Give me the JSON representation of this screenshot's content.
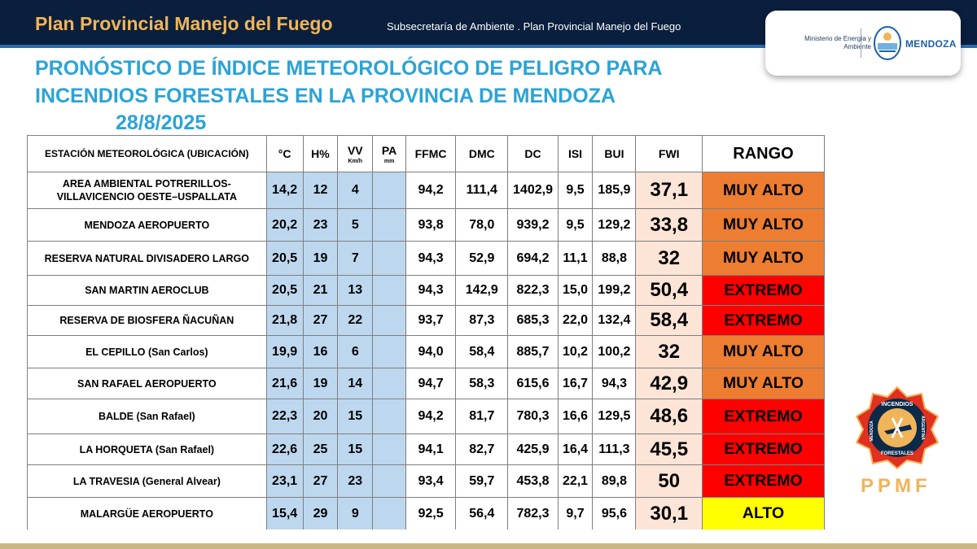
{
  "header": {
    "title": "Plan Provincial Manejo del Fuego",
    "subtitle": "Subsecretaría de Ambiente . Plan Provincial Manejo del Fuego",
    "logo_ministry": "Ministerio de Energía y Ambiente",
    "logo_mendoza": "MENDOZA"
  },
  "heading": {
    "line1": "PRONÓSTICO DE ÍNDICE METEOROLÓGICO DE PELIGRO PARA",
    "line2": "INCENDIOS FORESTALES EN LA PROVINCIA DE MENDOZA",
    "date": "28/8/2025"
  },
  "table": {
    "headers": {
      "station": "ESTACIÓN METEOROLÓGICA (UBICACIÓN)",
      "temp": "°C",
      "hum": "H%",
      "wind": "VV",
      "wind_unit": "Km/h",
      "rain": "PA",
      "rain_unit": "mm",
      "ffmc": "FFMC",
      "dmc": "DMC",
      "dc": "DC",
      "isi": "ISI",
      "bui": "BUI",
      "fwi": "FWI",
      "range": "RANGO"
    },
    "rows": [
      {
        "station_l1": "AREA AMBIENTAL POTRERILLOS-",
        "station_l2": "VILLAVICENCIO OESTE–USPALLATA",
        "temp": "14,2",
        "hum": "12",
        "wind": "4",
        "rain": "",
        "ffmc": "94,2",
        "dmc": "111,4",
        "dc": "1402,9",
        "isi": "9,5",
        "bui": "185,9",
        "fwi": "37,1",
        "range": "MUY ALTO",
        "range_color": "#ed7d31"
      },
      {
        "station_l1": "MENDOZA AEROPUERTO",
        "station_l2": "",
        "temp": "20,2",
        "hum": "23",
        "wind": "5",
        "rain": "",
        "ffmc": "93,8",
        "dmc": "78,0",
        "dc": "939,2",
        "isi": "9,5",
        "bui": "129,2",
        "fwi": "33,8",
        "range": "MUY ALTO",
        "range_color": "#ed7d31"
      },
      {
        "station_l1": "RESERVA NATURAL DIVISADERO LARGO",
        "station_l2": "",
        "temp": "20,5",
        "hum": "19",
        "wind": "7",
        "rain": "",
        "ffmc": "94,3",
        "dmc": "52,9",
        "dc": "694,2",
        "isi": "11,1",
        "bui": "88,8",
        "fwi": "32",
        "range": "MUY ALTO",
        "range_color": "#ed7d31"
      },
      {
        "station_l1": "SAN MARTIN AEROCLUB",
        "station_l2": "",
        "temp": "20,5",
        "hum": "21",
        "wind": "13",
        "rain": "",
        "ffmc": "94,3",
        "dmc": "142,9",
        "dc": "822,3",
        "isi": "15,0",
        "bui": "199,2",
        "fwi": "50,4",
        "range": "EXTREMO",
        "range_color": "#ff0000"
      },
      {
        "station_l1": "RESERVA DE BIOSFERA ÑACUÑAN",
        "station_l2": "",
        "temp": "21,8",
        "hum": "27",
        "wind": "22",
        "rain": "",
        "ffmc": "93,7",
        "dmc": "87,3",
        "dc": "685,3",
        "isi": "22,0",
        "bui": "132,4",
        "fwi": "58,4",
        "range": "EXTREMO",
        "range_color": "#ff0000"
      },
      {
        "station_l1": "EL CEPILLO (San Carlos)",
        "station_l2": "",
        "temp": "19,9",
        "hum": "16",
        "wind": "6",
        "rain": "",
        "ffmc": "94,0",
        "dmc": "58,4",
        "dc": "885,7",
        "isi": "10,2",
        "bui": "100,2",
        "fwi": "32",
        "range": "MUY ALTO",
        "range_color": "#ed7d31"
      },
      {
        "station_l1": "SAN RAFAEL AEROPUERTO",
        "station_l2": "",
        "temp": "21,6",
        "hum": "19",
        "wind": "14",
        "rain": "",
        "ffmc": "94,7",
        "dmc": "58,3",
        "dc": "615,6",
        "isi": "16,7",
        "bui": "94,3",
        "fwi": "42,9",
        "range": "MUY ALTO",
        "range_color": "#ed7d31"
      },
      {
        "station_l1": "BALDE (San Rafael)",
        "station_l2": "",
        "temp": "22,3",
        "hum": "20",
        "wind": "15",
        "rain": "",
        "ffmc": "94,2",
        "dmc": "81,7",
        "dc": "780,3",
        "isi": "16,6",
        "bui": "129,5",
        "fwi": "48,6",
        "range": "EXTREMO",
        "range_color": "#ff0000"
      },
      {
        "station_l1": "LA HORQUETA (San Rafael)",
        "station_l2": "",
        "temp": "22,6",
        "hum": "25",
        "wind": "15",
        "rain": "",
        "ffmc": "94,1",
        "dmc": "82,7",
        "dc": "425,9",
        "isi": "16,4",
        "bui": "111,3",
        "fwi": "45,5",
        "range": "EXTREMO",
        "range_color": "#ff0000"
      },
      {
        "station_l1": "LA TRAVESIA (General Alvear)",
        "station_l2": "",
        "temp": "23,1",
        "hum": "27",
        "wind": "23",
        "rain": "",
        "ffmc": "93,4",
        "dmc": "59,7",
        "dc": "453,8",
        "isi": "22,1",
        "bui": "89,8",
        "fwi": "50",
        "range": "EXTREMO",
        "range_color": "#ff0000"
      },
      {
        "station_l1": "MALARGÜE AEROPUERTO",
        "station_l2": "",
        "temp": "15,4",
        "hum": "29",
        "wind": "9",
        "rain": "",
        "ffmc": "92,5",
        "dmc": "56,4",
        "dc": "782,3",
        "isi": "9,7",
        "bui": "95,6",
        "fwi": "30,1",
        "range": "ALTO",
        "range_color": "#ffff00"
      }
    ]
  },
  "ppmf": {
    "text": "PPMF",
    "seal_top": "INCENDIOS",
    "seal_left": "MENDOZA",
    "seal_right": "ARGENTINA",
    "seal_bottom": "FORESTALES"
  },
  "colors": {
    "heading": "#2ba3d6",
    "title": "#f0b45a",
    "topbar": "#0a1f3d",
    "met_cells": "#bdd7ee",
    "fwi_cells": "#fce4d6"
  }
}
